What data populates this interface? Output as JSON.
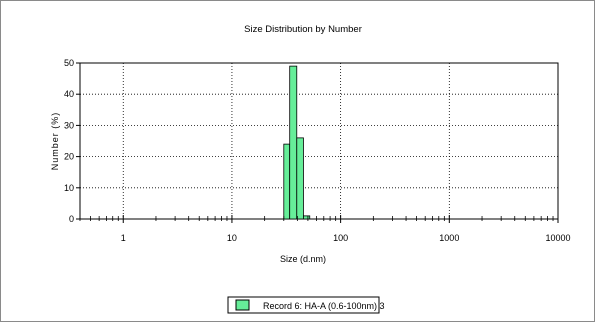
{
  "chart_data": {
    "type": "bar",
    "title": "Size Distribution by Number",
    "xlabel": "Size (d.nm)",
    "ylabel": "Number (%)",
    "x_scale": "log",
    "xlim": [
      0.4,
      10000
    ],
    "ylim": [
      0,
      50
    ],
    "grid": true,
    "legend_position": "bottom-center",
    "x_ticks": [
      "1",
      "10",
      "100",
      "1000",
      "10000"
    ],
    "y_ticks": [
      "0",
      "10",
      "20",
      "30",
      "40",
      "50"
    ],
    "series": [
      {
        "name": "Record 6: HA-A (0.6-100nm) 3",
        "color": "#66ee99",
        "bins": [
          {
            "from": 30.0,
            "to": 34.0,
            "value": 24
          },
          {
            "from": 34.0,
            "to": 39.5,
            "value": 49
          },
          {
            "from": 39.5,
            "to": 45.5,
            "value": 26
          },
          {
            "from": 45.5,
            "to": 52.0,
            "value": 1
          }
        ]
      }
    ]
  }
}
